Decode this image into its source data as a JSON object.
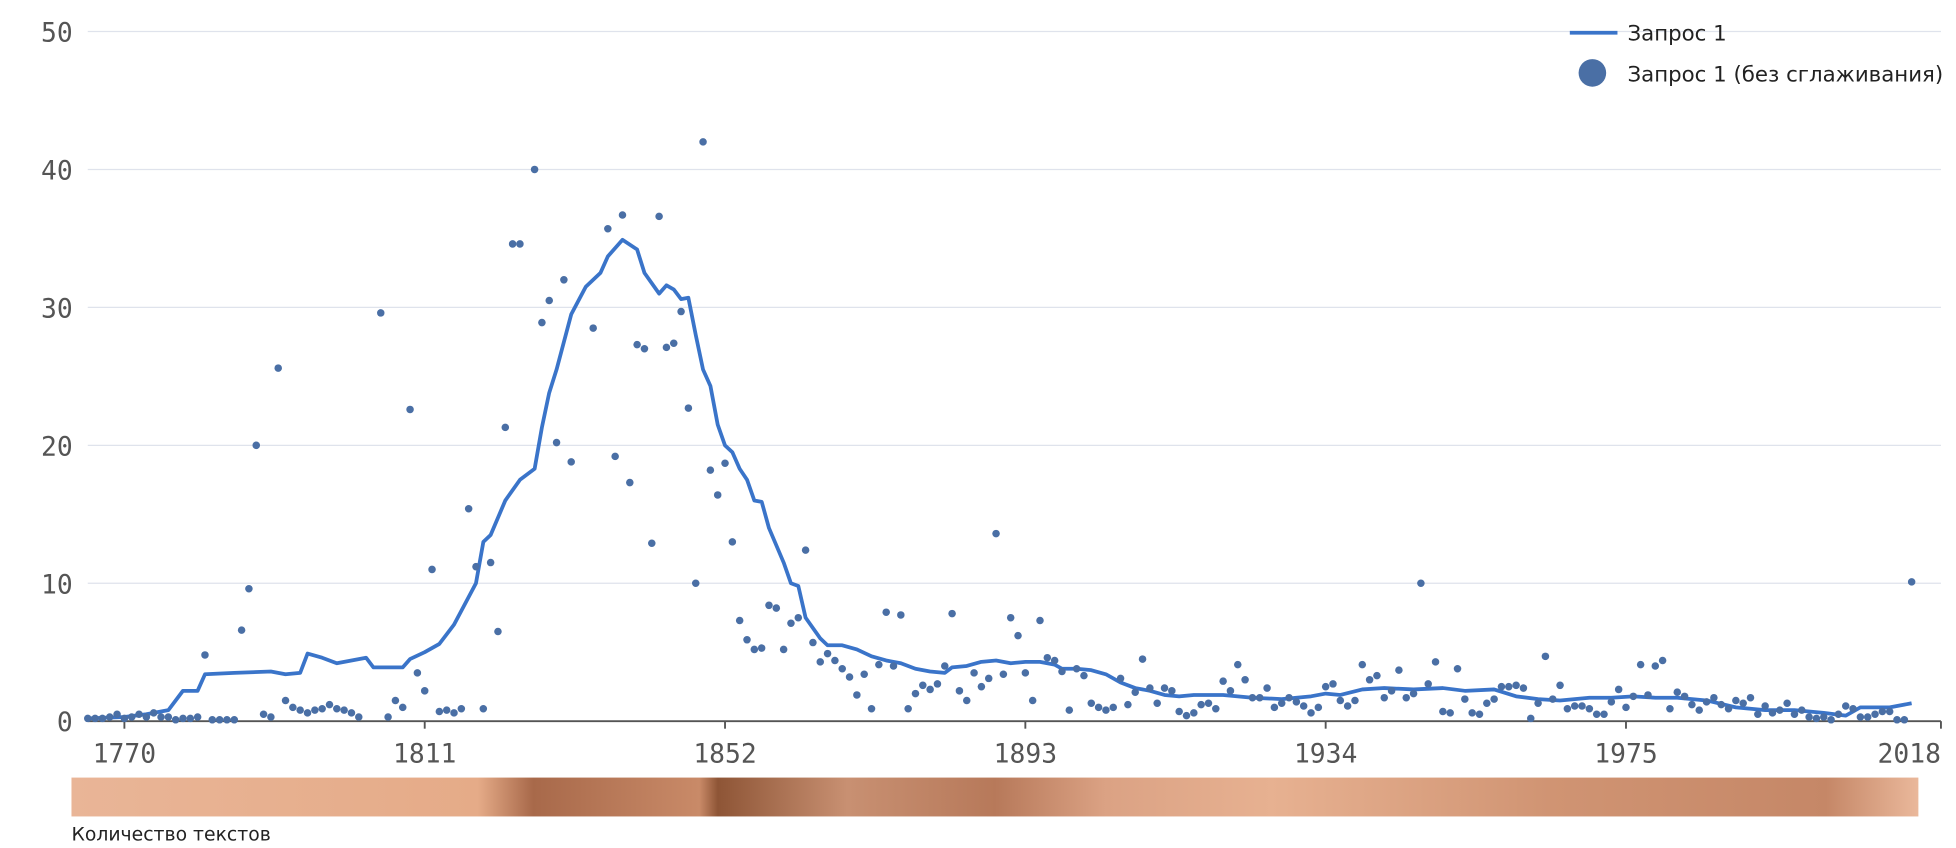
{
  "chart_data": {
    "type": "line",
    "xlim": [
      1765,
      2018
    ],
    "xticks": [
      1770,
      1811,
      1852,
      1893,
      1934,
      1975,
      2018
    ],
    "ylim": [
      0,
      50
    ],
    "yticks": [
      0,
      10,
      20,
      30,
      40,
      50
    ],
    "grid": true,
    "legend": "upper right",
    "strip_title": "Количество текстов",
    "series": [
      {
        "name": "Запрос 1",
        "type": "line",
        "color": "#3a74c9",
        "x": [
          1765,
          1770,
          1773,
          1776,
          1778,
          1780,
          1781,
          1785,
          1790,
          1792,
          1794,
          1795,
          1797,
          1799,
          1803,
          1804,
          1808,
          1809,
          1811,
          1813,
          1815,
          1818,
          1819,
          1820,
          1822,
          1824,
          1826,
          1827,
          1828,
          1829,
          1831,
          1833,
          1835,
          1836,
          1838,
          1840,
          1841,
          1843,
          1844,
          1845,
          1846,
          1847,
          1848,
          1849,
          1850,
          1851,
          1852,
          1853,
          1854,
          1855,
          1856,
          1857,
          1858,
          1860,
          1861,
          1862,
          1863,
          1865,
          1866,
          1868,
          1870,
          1872,
          1874,
          1876,
          1878,
          1880,
          1882,
          1883,
          1885,
          1887,
          1889,
          1891,
          1893,
          1895,
          1897,
          1898,
          1900,
          1902,
          1904,
          1906,
          1908,
          1910,
          1912,
          1914,
          1916,
          1920,
          1924,
          1928,
          1932,
          1934,
          1936,
          1939,
          1942,
          1946,
          1950,
          1953,
          1957,
          1960,
          1963,
          1966,
          1970,
          1973,
          1976,
          1979,
          1982,
          1986,
          1990,
          1994,
          1998,
          2002,
          2005,
          2007,
          2011,
          2014
        ],
        "values": [
          0.2,
          0.3,
          0.5,
          0.8,
          2.2,
          2.2,
          3.4,
          3.5,
          3.6,
          3.4,
          3.5,
          4.9,
          4.6,
          4.2,
          4.6,
          3.9,
          3.9,
          4.5,
          5.0,
          5.6,
          7.0,
          10,
          13,
          13.5,
          16,
          17.5,
          18.3,
          21.3,
          23.8,
          25.5,
          29.5,
          31.5,
          32.5,
          33.7,
          34.9,
          34.2,
          32.5,
          31,
          31.6,
          31.3,
          30.6,
          30.7,
          28,
          25.5,
          24.3,
          21.5,
          20,
          19.5,
          18.3,
          17.5,
          16,
          15.9,
          14,
          11.5,
          10,
          9.8,
          7.5,
          6,
          5.5,
          5.5,
          5.2,
          4.7,
          4.4,
          4.2,
          3.8,
          3.6,
          3.5,
          3.9,
          4.0,
          4.3,
          4.4,
          4.2,
          4.3,
          4.3,
          4.1,
          3.8,
          3.8,
          3.7,
          3.4,
          2.8,
          2.4,
          2.2,
          1.9,
          1.8,
          1.9,
          1.9,
          1.7,
          1.6,
          1.8,
          2.0,
          1.9,
          2.3,
          2.4,
          2.3,
          2.4,
          2.2,
          2.3,
          1.8,
          1.6,
          1.5,
          1.7,
          1.7,
          1.8,
          1.7,
          1.7,
          1.5,
          1.0,
          0.8,
          0.8,
          0.6,
          0.4,
          1.0,
          1.0,
          1.3
        ]
      },
      {
        "name": "Запрос 1 (без сглаживания)",
        "type": "scatter",
        "color": "#4a6fa5",
        "x": [
          1765,
          1766,
          1767,
          1768,
          1769,
          1770,
          1771,
          1772,
          1773,
          1774,
          1775,
          1776,
          1777,
          1778,
          1779,
          1780,
          1781,
          1782,
          1783,
          1784,
          1785,
          1786,
          1787,
          1788,
          1789,
          1790,
          1791,
          1792,
          1793,
          1794,
          1795,
          1796,
          1797,
          1798,
          1799,
          1800,
          1801,
          1802,
          1805,
          1806,
          1807,
          1808,
          1809,
          1810,
          1811,
          1812,
          1813,
          1814,
          1815,
          1816,
          1817,
          1818,
          1819,
          1820,
          1821,
          1822,
          1823,
          1824,
          1826,
          1827,
          1828,
          1829,
          1830,
          1831,
          1834,
          1836,
          1837,
          1838,
          1839,
          1840,
          1841,
          1842,
          1843,
          1844,
          1845,
          1846,
          1847,
          1848,
          1849,
          1850,
          1851,
          1852,
          1853,
          1854,
          1855,
          1856,
          1857,
          1858,
          1859,
          1860,
          1861,
          1862,
          1863,
          1864,
          1865,
          1866,
          1867,
          1868,
          1869,
          1870,
          1871,
          1872,
          1873,
          1874,
          1875,
          1876,
          1877,
          1878,
          1879,
          1880,
          1881,
          1882,
          1883,
          1884,
          1885,
          1886,
          1887,
          1888,
          1889,
          1890,
          1891,
          1892,
          1893,
          1894,
          1895,
          1896,
          1897,
          1898,
          1899,
          1900,
          1901,
          1902,
          1903,
          1904,
          1905,
          1906,
          1907,
          1908,
          1909,
          1910,
          1911,
          1912,
          1913,
          1914,
          1915,
          1916,
          1917,
          1918,
          1919,
          1920,
          1921,
          1922,
          1923,
          1924,
          1925,
          1926,
          1927,
          1928,
          1929,
          1930,
          1931,
          1932,
          1933,
          1934,
          1935,
          1936,
          1937,
          1938,
          1939,
          1940,
          1941,
          1942,
          1943,
          1944,
          1945,
          1946,
          1947,
          1948,
          1949,
          1950,
          1951,
          1952,
          1953,
          1954,
          1955,
          1956,
          1957,
          1958,
          1959,
          1960,
          1961,
          1962,
          1963,
          1964,
          1965,
          1966,
          1967,
          1968,
          1969,
          1970,
          1971,
          1972,
          1973,
          1974,
          1975,
          1976,
          1977,
          1978,
          1979,
          1980,
          1981,
          1982,
          1983,
          1984,
          1985,
          1986,
          1987,
          1988,
          1989,
          1990,
          1991,
          1992,
          1993,
          1994,
          1995,
          1996,
          1997,
          1998,
          1999,
          2000,
          2001,
          2002,
          2003,
          2004,
          2005,
          2006,
          2007,
          2008,
          2009,
          2010,
          2011,
          2012,
          2013,
          2014
        ],
        "values": [
          0.2,
          0.2,
          0.2,
          0.3,
          0.5,
          0.2,
          0.3,
          0.5,
          0.3,
          0.6,
          0.3,
          0.3,
          0.1,
          0.2,
          0.2,
          0.3,
          4.8,
          0.1,
          0.1,
          0.1,
          0.1,
          6.6,
          9.6,
          20,
          0.5,
          0.3,
          25.6,
          1.5,
          1.0,
          0.8,
          0.6,
          0.8,
          0.9,
          1.2,
          0.9,
          0.8,
          0.6,
          0.3,
          29.6,
          0.3,
          1.5,
          1.0,
          22.6,
          3.5,
          2.2,
          11.0,
          0.7,
          0.8,
          0.6,
          0.9,
          15.4,
          11.2,
          0.9,
          11.5,
          6.5,
          21.3,
          34.6,
          34.6,
          40,
          28.9,
          30.5,
          20.2,
          32,
          18.8,
          28.5,
          35.7,
          19.2,
          36.7,
          17.3,
          27.3,
          27.0,
          12.9,
          36.6,
          27.1,
          27.4,
          29.7,
          22.7,
          10,
          42,
          18.2,
          16.4,
          18.7,
          13,
          7.3,
          5.9,
          5.2,
          5.3,
          8.4,
          8.2,
          5.2,
          7.1,
          7.5,
          12.4,
          5.7,
          4.3,
          4.9,
          4.4,
          3.8,
          3.2,
          1.9,
          3.4,
          0.9,
          4.1,
          7.9,
          4.0,
          7.7,
          0.9,
          2.0,
          2.6,
          2.3,
          2.7,
          4.0,
          7.8,
          2.2,
          1.5,
          3.5,
          2.5,
          3.1,
          13.6,
          3.4,
          7.5,
          6.2,
          3.5,
          1.5,
          7.3,
          4.6,
          4.4,
          3.6,
          0.8,
          3.8,
          3.3,
          1.3,
          1.0,
          0.8,
          1.0,
          3.1,
          1.2,
          2.1,
          4.5,
          2.4,
          1.3,
          2.4,
          2.2,
          0.7,
          0.4,
          0.6,
          1.2,
          1.3,
          0.9,
          2.9,
          2.2,
          4.1,
          3.0,
          1.7,
          1.7,
          2.4,
          1.0,
          1.3,
          1.7,
          1.4,
          1.1,
          0.6,
          1.0,
          2.5,
          2.7,
          1.5,
          1.1,
          1.5,
          4.1,
          3.0,
          3.3,
          1.7,
          2.2,
          3.7,
          1.7,
          2.0,
          10.0,
          2.7,
          4.3,
          0.7,
          0.6,
          3.8,
          1.6,
          0.6,
          0.5,
          1.3,
          1.6,
          2.5,
          2.5,
          2.6,
          2.4,
          0.2,
          1.3,
          4.7,
          1.6,
          2.6,
          0.9,
          1.1,
          1.1,
          0.9,
          0.5,
          0.5,
          1.4,
          2.3,
          1.0,
          1.8,
          4.1,
          1.9,
          4.0,
          4.4,
          0.9,
          2.1,
          1.8,
          1.2,
          0.8,
          1.4,
          1.7,
          1.2,
          0.9,
          1.5,
          1.3,
          1.7,
          0.5,
          1.1,
          0.6,
          0.8,
          1.3,
          0.5,
          0.8,
          0.3,
          0.2,
          0.3,
          0.1,
          0.5,
          1.1,
          0.9,
          0.3,
          0.3,
          0.5,
          0.7,
          0.7,
          0.1,
          0.1,
          10.1
        ]
      }
    ]
  }
}
